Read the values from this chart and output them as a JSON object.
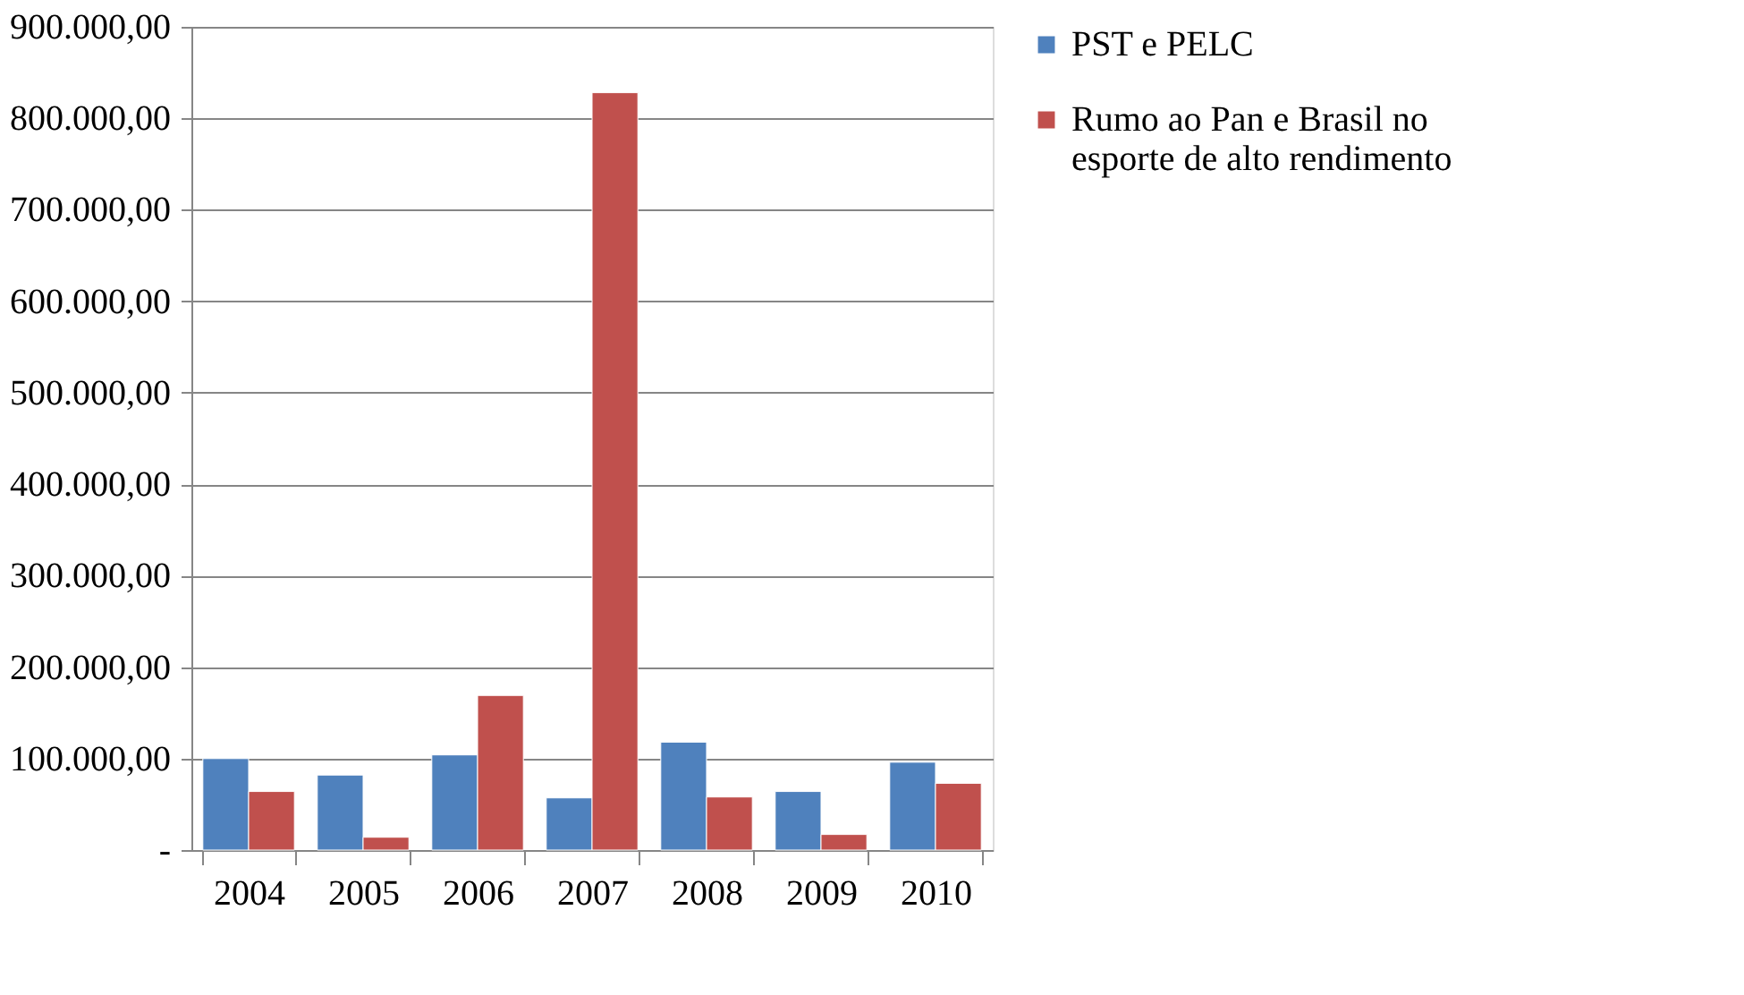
{
  "chart_data": {
    "type": "bar",
    "categories": [
      "2004",
      "2005",
      "2006",
      "2007",
      "2008",
      "2009",
      "2010"
    ],
    "series": [
      {
        "name": "PST e PELC",
        "color": "#4f81bd",
        "values": [
          100000,
          82000,
          104000,
          57000,
          118000,
          64000,
          96000
        ]
      },
      {
        "name": "Rumo ao Pan e Brasil no esporte de alto rendimento",
        "color": "#c0504d",
        "values": [
          64000,
          14000,
          169000,
          828000,
          58000,
          17000,
          73000
        ]
      }
    ],
    "ylim": [
      0,
      900000
    ],
    "yticks": [
      {
        "value": 0,
        "label": "-"
      },
      {
        "value": 100000,
        "label": "100.000,00"
      },
      {
        "value": 200000,
        "label": "200.000,00"
      },
      {
        "value": 300000,
        "label": "300.000,00"
      },
      {
        "value": 400000,
        "label": "400.000,00"
      },
      {
        "value": 500000,
        "label": "500.000,00"
      },
      {
        "value": 600000,
        "label": "600.000,00"
      },
      {
        "value": 700000,
        "label": "700.000,00"
      },
      {
        "value": 800000,
        "label": "800.000,00"
      },
      {
        "value": 900000,
        "label": "900.000,00"
      }
    ],
    "grid": "y",
    "legend": "right"
  }
}
